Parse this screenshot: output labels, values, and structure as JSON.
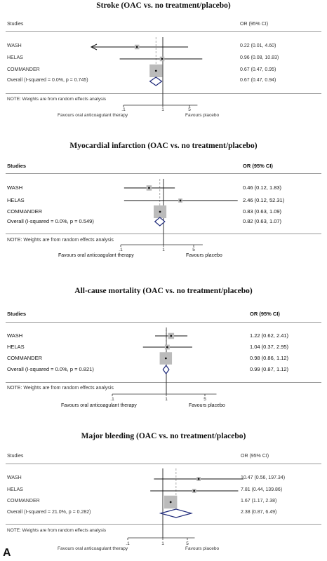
{
  "panel_letter": "A",
  "chart_data": [
    {
      "type": "forest",
      "title": "Stroke (OAC vs. no treatment/placebo)",
      "header_left": "Studies",
      "header_right": "OR (95% CI)",
      "studies": [
        {
          "name": "WASH",
          "or": 0.22,
          "lo": 0.01,
          "hi": 4.6,
          "label": "0.22 (0.01, 4.60)",
          "weight": 0.05,
          "arrow_left": true
        },
        {
          "name": "HELAS",
          "or": 0.96,
          "lo": 0.08,
          "hi": 10.83,
          "label": "0.96 (0.08, 10.83)",
          "weight": 0.05
        },
        {
          "name": "COMMANDER",
          "or": 0.67,
          "lo": 0.47,
          "hi": 0.95,
          "label": "0.67 (0.47, 0.95)",
          "weight": 0.9
        }
      ],
      "overall": {
        "name": "Overall  (I-squared = 0.0%, p = 0.745)",
        "or": 0.67,
        "lo": 0.47,
        "hi": 0.94,
        "label": "0.67 (0.47, 0.94)"
      },
      "note": "NOTE: Weights are from random effects analysis",
      "ticks": [
        ".1",
        "1",
        "5"
      ],
      "xlabel_left": "Favours oral anticoagulant therapy",
      "xlabel_right": "Favours placebo"
    },
    {
      "type": "forest",
      "title": "Myocardial infarction (OAC vs. no treatment/placebo)",
      "header_left": "Studies",
      "header_right": "OR (95% CI)",
      "studies": [
        {
          "name": "WASH",
          "or": 0.46,
          "lo": 0.12,
          "hi": 1.83,
          "label": "0.46 (0.12, 1.83)",
          "weight": 0.08
        },
        {
          "name": "HELAS",
          "or": 2.46,
          "lo": 0.12,
          "hi": 52.31,
          "label": "2.46 (0.12, 52.31)",
          "weight": 0.03
        },
        {
          "name": "COMMANDER",
          "or": 0.83,
          "lo": 0.63,
          "hi": 1.09,
          "label": "0.83 (0.63, 1.09)",
          "weight": 0.89
        }
      ],
      "overall": {
        "name": "Overall  (I-squared = 0.0%, p = 0.549)",
        "or": 0.82,
        "lo": 0.63,
        "hi": 1.07,
        "label": "0.82 (0.63, 1.07)"
      },
      "note": "NOTE: Weights are from random effects analysis",
      "ticks": [
        ".1",
        "1",
        "5"
      ],
      "xlabel_left": "Favours oral anticoagulant therapy",
      "xlabel_right": "Favours placebo"
    },
    {
      "type": "forest",
      "title": "All-cause mortality (OAC vs. no treatment/placebo)",
      "header_left": "Studies",
      "header_right": "OR (95% CI)",
      "studies": [
        {
          "name": "WASH",
          "or": 1.22,
          "lo": 0.62,
          "hi": 2.41,
          "label": "1.22 (0.62, 2.41)",
          "weight": 0.12
        },
        {
          "name": "HELAS",
          "or": 1.04,
          "lo": 0.37,
          "hi": 2.95,
          "label": "1.04 (0.37, 2.95)",
          "weight": 0.06
        },
        {
          "name": "COMMANDER",
          "or": 0.98,
          "lo": 0.86,
          "hi": 1.12,
          "label": "0.98 (0.86, 1.12)",
          "weight": 0.82
        }
      ],
      "overall": {
        "name": "Overall  (I-squared = 0.0%, p = 0.821)",
        "or": 0.99,
        "lo": 0.87,
        "hi": 1.12,
        "label": "0.99 (0.87, 1.12)"
      },
      "note": "NOTE: Weights are from random effects analysis",
      "ticks": [
        ".1",
        "1",
        "5"
      ],
      "xlabel_left": "Favours oral anticoagulant therapy",
      "xlabel_right": "Favours placebo"
    },
    {
      "type": "forest",
      "title": "Major bleeding (OAC vs. no treatment/placebo)",
      "header_left": "Studies",
      "header_right": "OR (95% CI)",
      "studies": [
        {
          "name": "WASH",
          "or": 10.47,
          "lo": 0.56,
          "hi": 197.34,
          "label": "10.47 (0.56, 197.34)",
          "weight": 0.03
        },
        {
          "name": "HELAS",
          "or": 7.81,
          "lo": 0.44,
          "hi": 139.86,
          "label": "7.81 (0.44, 139.86)",
          "weight": 0.03
        },
        {
          "name": "COMMANDER",
          "or": 1.67,
          "lo": 1.17,
          "hi": 2.38,
          "label": "1.67 (1.17, 2.38)",
          "weight": 0.94
        }
      ],
      "overall": {
        "name": "Overall  (I-squared = 21.0%, p = 0.282)",
        "or": 2.38,
        "lo": 0.87,
        "hi": 6.49,
        "label": "2.38 (0.87, 6.49)"
      },
      "note": "NOTE: Weights are from random effects analysis",
      "ticks": [
        ".1",
        "1",
        "5"
      ],
      "xlabel_left": "Favours oral anticoagulant therapy",
      "xlabel_right": "Favours placebo"
    }
  ]
}
